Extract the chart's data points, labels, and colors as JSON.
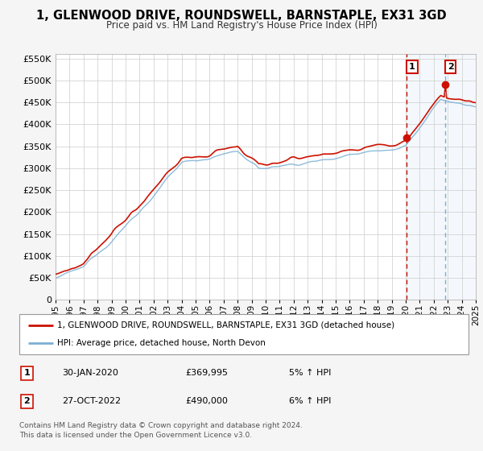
{
  "title": "1, GLENWOOD DRIVE, ROUNDSWELL, BARNSTAPLE, EX31 3GD",
  "subtitle": "Price paid vs. HM Land Registry's House Price Index (HPI)",
  "legend_line1": "1, GLENWOOD DRIVE, ROUNDSWELL, BARNSTAPLE, EX31 3GD (detached house)",
  "legend_line2": "HPI: Average price, detached house, North Devon",
  "marker1_date": "30-JAN-2020",
  "marker1_price": "£369,995",
  "marker1_hpi": "5% ↑ HPI",
  "marker1_year": 2020.08,
  "marker1_value": 369995,
  "marker2_date": "27-OCT-2022",
  "marker2_price": "£490,000",
  "marker2_hpi": "6% ↑ HPI",
  "marker2_year": 2022.82,
  "marker2_value": 490000,
  "footer1": "Contains HM Land Registry data © Crown copyright and database right 2024.",
  "footer2": "This data is licensed under the Open Government Licence v3.0.",
  "xlim": [
    1995,
    2025
  ],
  "ylim": [
    0,
    560000
  ],
  "yticks": [
    0,
    50000,
    100000,
    150000,
    200000,
    250000,
    300000,
    350000,
    400000,
    450000,
    500000,
    550000
  ],
  "xticks": [
    1995,
    1996,
    1997,
    1998,
    1999,
    2000,
    2001,
    2002,
    2003,
    2004,
    2005,
    2006,
    2007,
    2008,
    2009,
    2010,
    2011,
    2012,
    2013,
    2014,
    2015,
    2016,
    2017,
    2018,
    2019,
    2020,
    2021,
    2022,
    2023,
    2024,
    2025
  ],
  "hpi_color": "#7bafd4",
  "price_color": "#cc1100",
  "background_color": "#f5f5f5",
  "plot_bg_color": "#ffffff",
  "grid_color": "#cccccc",
  "shade_color": "#ddeeff"
}
